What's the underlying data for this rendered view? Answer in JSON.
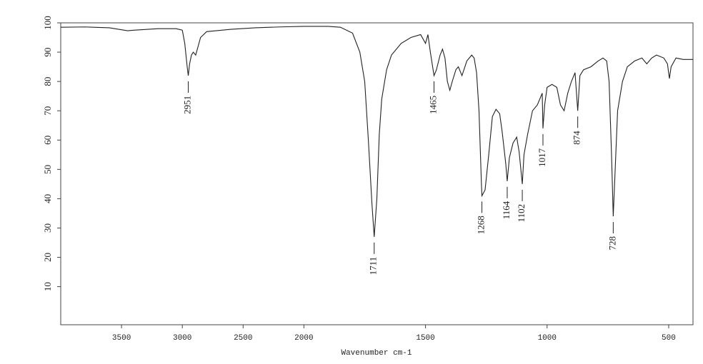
{
  "chart_data": {
    "type": "line",
    "x_label": "Wavenumber cm-1",
    "xlim": [
      4000,
      400
    ],
    "x_scale_break": {
      "at": 2000,
      "factor": 2
    },
    "xticks": [
      3500,
      3000,
      2500,
      2000,
      1500,
      1000,
      500
    ],
    "ylim": [
      -3,
      100
    ],
    "yticks": [
      10,
      20,
      30,
      40,
      50,
      60,
      70,
      80,
      90,
      100
    ],
    "x": [
      4000,
      3800,
      3600,
      3450,
      3400,
      3200,
      3050,
      3000,
      2980,
      2960,
      2951,
      2940,
      2925,
      2910,
      2890,
      2870,
      2850,
      2800,
      2600,
      2400,
      2200,
      2000,
      1900,
      1850,
      1800,
      1770,
      1750,
      1735,
      1720,
      1711,
      1700,
      1690,
      1680,
      1660,
      1640,
      1600,
      1560,
      1520,
      1500,
      1490,
      1480,
      1465,
      1455,
      1440,
      1430,
      1420,
      1410,
      1400,
      1390,
      1375,
      1365,
      1350,
      1330,
      1310,
      1300,
      1290,
      1280,
      1270,
      1268,
      1255,
      1240,
      1225,
      1210,
      1195,
      1185,
      1170,
      1164,
      1155,
      1140,
      1125,
      1115,
      1102,
      1095,
      1080,
      1060,
      1040,
      1030,
      1020,
      1017,
      1010,
      1000,
      980,
      960,
      945,
      930,
      915,
      900,
      885,
      874,
      865,
      850,
      820,
      790,
      770,
      755,
      745,
      735,
      728,
      720,
      710,
      690,
      670,
      640,
      610,
      590,
      570,
      550,
      520,
      505,
      497,
      490,
      470,
      440,
      400
    ],
    "series": [
      {
        "color": "#222222",
        "values": [
          98.5,
          98.6,
          98.3,
          97.3,
          97.5,
          98.0,
          98.0,
          97.5,
          93,
          85,
          82,
          86,
          89,
          90,
          89,
          92,
          95,
          97,
          97.8,
          98.3,
          98.6,
          98.8,
          98.8,
          98.5,
          96.5,
          90,
          80,
          60,
          38,
          27,
          40,
          62,
          74,
          84,
          89,
          93,
          95,
          96,
          93,
          96,
          90,
          82,
          84,
          89,
          91,
          88,
          80,
          77,
          80,
          84,
          85,
          82,
          87,
          89,
          88,
          83,
          70,
          45,
          41,
          43,
          55,
          68,
          70.5,
          69,
          63,
          52,
          46,
          54,
          59,
          61,
          56,
          45,
          55,
          62,
          70,
          72,
          74,
          76,
          64,
          72,
          78,
          79,
          78,
          72,
          70,
          76,
          80,
          83,
          70,
          82,
          84,
          85,
          87,
          88,
          87,
          80,
          55,
          34,
          50,
          70,
          80,
          85,
          87,
          88,
          86,
          88,
          89,
          88,
          86,
          81,
          85,
          88,
          87.5,
          87.5
        ]
      }
    ],
    "peak_labels": [
      {
        "x": 2951,
        "y": 82
      },
      {
        "x": 1711,
        "y": 27
      },
      {
        "x": 1465,
        "y": 82
      },
      {
        "x": 1268,
        "y": 41
      },
      {
        "x": 1164,
        "y": 46
      },
      {
        "x": 1102,
        "y": 45
      },
      {
        "x": 1017,
        "y": 64
      },
      {
        "x": 874,
        "y": 70
      },
      {
        "x": 728,
        "y": 34
      }
    ]
  }
}
